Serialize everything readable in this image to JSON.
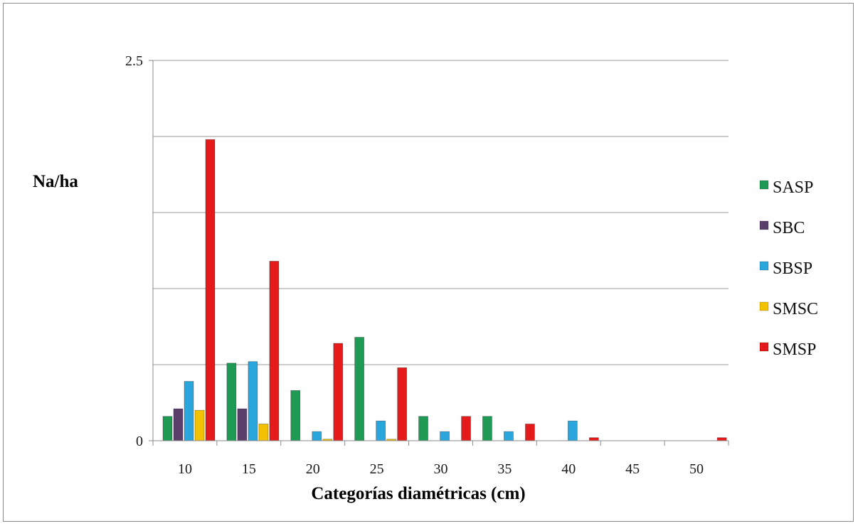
{
  "chart_data": {
    "type": "bar",
    "title": "",
    "xlabel": "Categorías diamétricas (cm)",
    "ylabel": "Na/ha",
    "ylim": [
      0,
      2.5
    ],
    "yticks_labeled": [
      "0",
      "2.5"
    ],
    "categories": [
      "10",
      "15",
      "20",
      "25",
      "30",
      "35",
      "40",
      "45",
      "50"
    ],
    "grid": true,
    "legend_position": "right",
    "series": [
      {
        "name": "SASP",
        "color": "#1f9a55",
        "values": [
          0.16,
          0.51,
          0.33,
          0.68,
          0.16,
          0.16,
          0,
          0,
          0
        ]
      },
      {
        "name": "SBC",
        "color": "#5b3f6b",
        "values": [
          0.21,
          0.21,
          0,
          0,
          0,
          0,
          0,
          0,
          0
        ]
      },
      {
        "name": "SBSP",
        "color": "#2aa6dc",
        "values": [
          0.39,
          0.52,
          0.06,
          0.13,
          0.06,
          0.06,
          0.13,
          0,
          0
        ]
      },
      {
        "name": "SMSC",
        "color": "#f2c200",
        "values": [
          0.2,
          0.11,
          0.01,
          0.01,
          0,
          0,
          0,
          0,
          0
        ]
      },
      {
        "name": "SMSP",
        "color": "#e51b1b",
        "values": [
          1.98,
          1.18,
          0.64,
          0.48,
          0.16,
          0.11,
          0.02,
          0,
          0.02
        ]
      }
    ]
  }
}
